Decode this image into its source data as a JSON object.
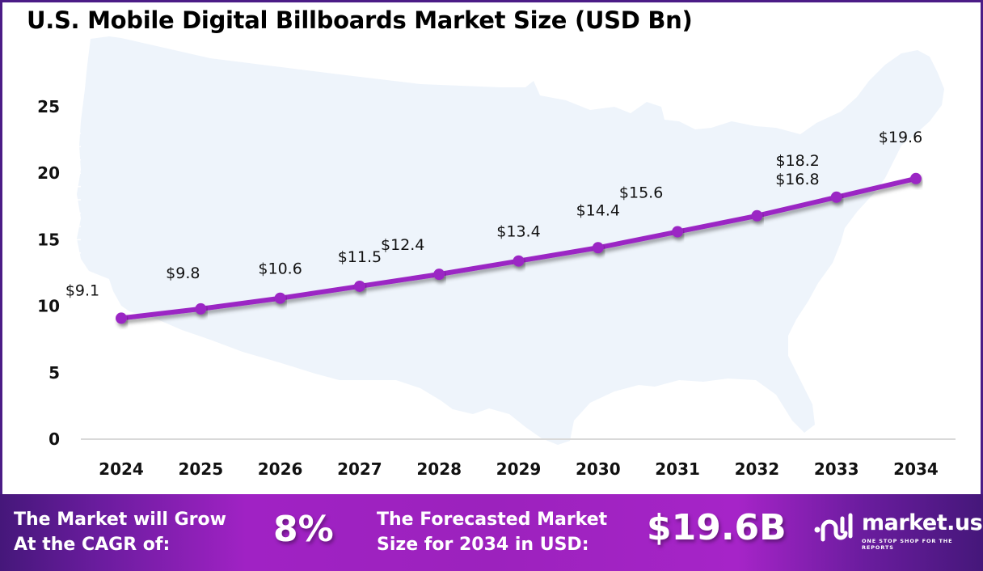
{
  "title": "U.S. Mobile Digital Billboards Market Size (USD Bn)",
  "colors": {
    "line": "#9b27c4",
    "marker": "#9b27c4",
    "map_fill": "#eef4fb",
    "baseline": "#d9d9d9",
    "frame": "#4b1c86",
    "footer_dark": "#45177a",
    "footer_bright": "#a022c4"
  },
  "chart_data": {
    "type": "line",
    "title": "U.S. Mobile Digital Billboards Market Size (USD Bn)",
    "xlabel": "",
    "ylabel": "",
    "categories": [
      "2024",
      "2025",
      "2026",
      "2027",
      "2028",
      "2029",
      "2030",
      "2031",
      "2032",
      "2033",
      "2034"
    ],
    "series": [
      {
        "name": "Market Size (USD Bn)",
        "values": [
          9.1,
          9.8,
          10.6,
          11.5,
          12.4,
          13.4,
          14.4,
          15.6,
          16.8,
          18.2,
          19.6
        ],
        "labels": [
          "$9.1",
          "$9.8",
          "$10.6",
          "$11.5",
          "$12.4",
          "$13.4",
          "$14.4",
          "$15.6",
          "$16.8",
          "$18.2",
          "$19.6"
        ]
      }
    ],
    "ylim": [
      0,
      25
    ],
    "yticks": [
      "0",
      "5",
      "10",
      "15",
      "20",
      "25"
    ],
    "ytick_values": [
      0,
      5,
      10,
      15,
      20,
      25
    ],
    "grid": false,
    "legend": "none",
    "background": "faint map of the United States"
  },
  "footer": {
    "cagr_label_line1": "The Market will Grow",
    "cagr_label_line2": "At the CAGR of:",
    "cagr_value": "8%",
    "forecast_label_line1": "The Forecasted Market",
    "forecast_label_line2": "Size for 2034 in USD:",
    "forecast_value": "$19.6B",
    "logo_name": "market.us",
    "logo_tagline": "ONE STOP SHOP FOR THE REPORTS",
    "logo_icon": "market-us-logo-icon"
  }
}
